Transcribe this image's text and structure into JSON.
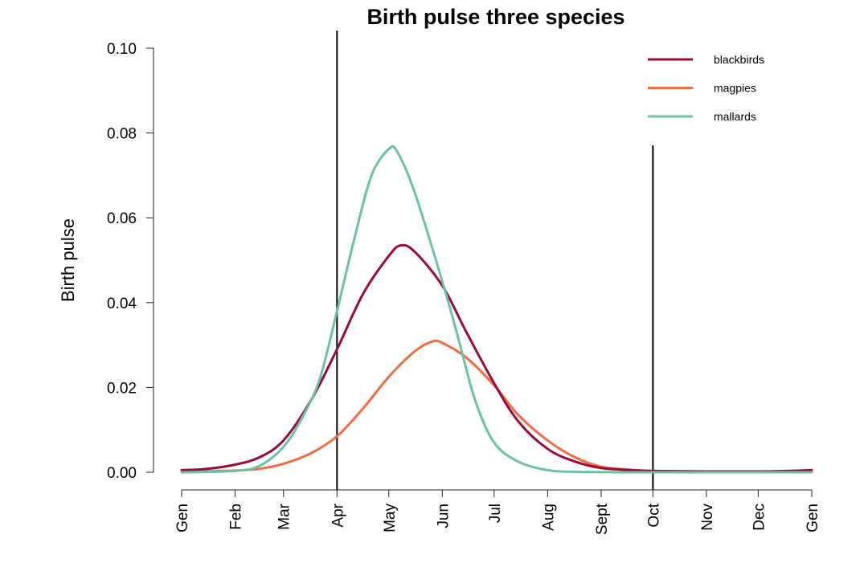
{
  "chart_data": {
    "type": "line",
    "title": "Birth pulse three species",
    "xlabel": "",
    "ylabel": "Birth pulse",
    "xlim": [
      0,
      365
    ],
    "ylim": [
      0,
      0.1
    ],
    "y_ticks": [
      0.0,
      0.02,
      0.04,
      0.06,
      0.08,
      0.1
    ],
    "y_tick_labels": [
      "0.00",
      "0.02",
      "0.04",
      "0.06",
      "0.08",
      "0.10"
    ],
    "x_ticks": [
      0,
      31,
      59,
      90,
      120,
      151,
      181,
      212,
      243,
      273,
      304,
      334,
      365
    ],
    "x_tick_labels": [
      "Gen",
      "Feb",
      "Mar",
      "Apr",
      "May",
      "Jun",
      "Jul",
      "Aug",
      "Sept",
      "Oct",
      "Nov",
      "Dec",
      "Gen"
    ],
    "vertical_lines": [
      90,
      273
    ],
    "legend_position": "top-right",
    "grid": false,
    "series": [
      {
        "name": "blackbirds",
        "color": "#9b0a3c",
        "points": [
          [
            0,
            0.0005
          ],
          [
            15,
            0.0008
          ],
          [
            31,
            0.0018
          ],
          [
            45,
            0.0035
          ],
          [
            59,
            0.0075
          ],
          [
            75,
            0.017
          ],
          [
            90,
            0.029
          ],
          [
            105,
            0.042
          ],
          [
            120,
            0.051
          ],
          [
            127,
            0.0535
          ],
          [
            135,
            0.052
          ],
          [
            151,
            0.044
          ],
          [
            165,
            0.033
          ],
          [
            181,
            0.021
          ],
          [
            195,
            0.012
          ],
          [
            212,
            0.0055
          ],
          [
            228,
            0.0025
          ],
          [
            243,
            0.001
          ],
          [
            260,
            0.0005
          ],
          [
            273,
            0.0003
          ],
          [
            304,
            0.0002
          ],
          [
            334,
            0.0002
          ],
          [
            350,
            0.0003
          ],
          [
            365,
            0.0005
          ]
        ]
      },
      {
        "name": "magpies",
        "color": "#f26b43",
        "points": [
          [
            0,
            0.0001
          ],
          [
            31,
            0.0004
          ],
          [
            45,
            0.0008
          ],
          [
            59,
            0.002
          ],
          [
            75,
            0.0045
          ],
          [
            90,
            0.0085
          ],
          [
            105,
            0.015
          ],
          [
            120,
            0.0225
          ],
          [
            135,
            0.0285
          ],
          [
            145,
            0.0308
          ],
          [
            151,
            0.0305
          ],
          [
            165,
            0.027
          ],
          [
            181,
            0.0205
          ],
          [
            195,
            0.0135
          ],
          [
            212,
            0.0075
          ],
          [
            228,
            0.0035
          ],
          [
            243,
            0.0013
          ],
          [
            260,
            0.0006
          ],
          [
            273,
            0.0003
          ],
          [
            304,
            0.0002
          ],
          [
            334,
            0.0002
          ],
          [
            365,
            0.0002
          ]
        ]
      },
      {
        "name": "mallards",
        "color": "#6cc3a4",
        "points": [
          [
            0,
            0.0
          ],
          [
            31,
            0.0003
          ],
          [
            45,
            0.0015
          ],
          [
            59,
            0.006
          ],
          [
            70,
            0.013
          ],
          [
            80,
            0.022
          ],
          [
            90,
            0.038
          ],
          [
            100,
            0.055
          ],
          [
            110,
            0.07
          ],
          [
            120,
            0.0762
          ],
          [
            125,
            0.0755
          ],
          [
            135,
            0.066
          ],
          [
            151,
            0.045
          ],
          [
            160,
            0.032
          ],
          [
            170,
            0.017
          ],
          [
            181,
            0.007
          ],
          [
            195,
            0.0025
          ],
          [
            212,
            0.0005
          ],
          [
            230,
            0.0001
          ],
          [
            273,
            0.0
          ],
          [
            365,
            0.0
          ]
        ]
      }
    ]
  }
}
